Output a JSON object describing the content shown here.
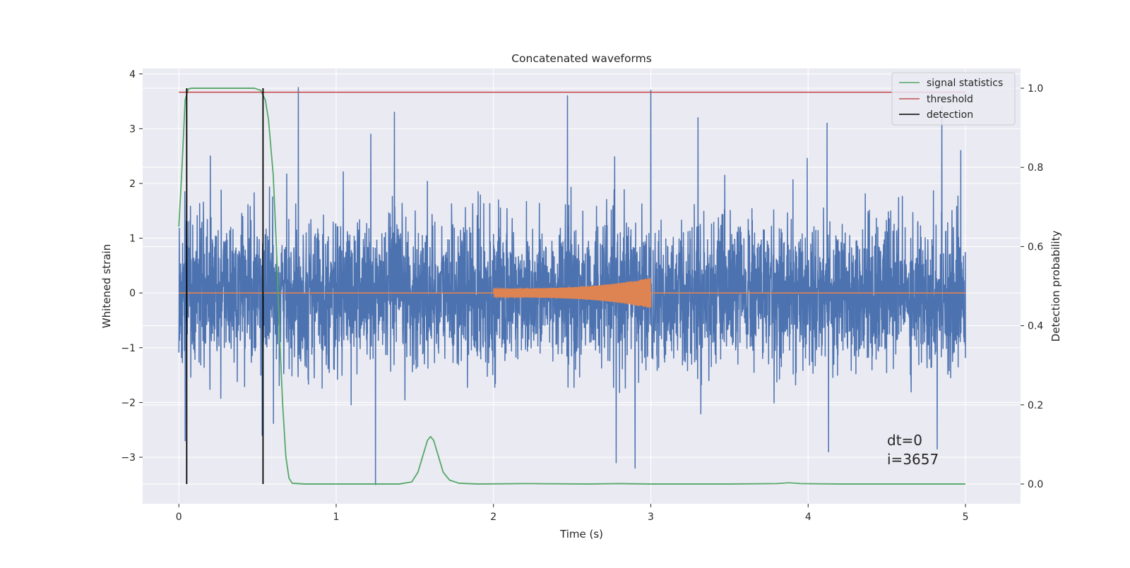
{
  "chart_data": {
    "type": "line",
    "title": "Concatenated waveforms",
    "xlabel": "Time (s)",
    "ylabel_left": "Whitened strain",
    "ylabel_right": "Detection probability",
    "xlim": [
      -0.23,
      5.35
    ],
    "ylim_left": [
      -3.85,
      4.1
    ],
    "ylim_right": [
      -0.05,
      1.05
    ],
    "xticks": [
      0,
      1,
      2,
      3,
      4,
      5
    ],
    "xtick_labels": [
      "0",
      "1",
      "2",
      "3",
      "4",
      "5"
    ],
    "yticks_left": [
      -3,
      -2,
      -1,
      0,
      1,
      2,
      3,
      4
    ],
    "ytick_labels_left": [
      "−3",
      "−2",
      "−1",
      "0",
      "1",
      "2",
      "3",
      "4"
    ],
    "yticks_right": [
      0.0,
      0.2,
      0.4,
      0.6,
      0.8,
      1.0
    ],
    "ytick_labels_right": [
      "0.0",
      "0.2",
      "0.4",
      "0.6",
      "0.8",
      "1.0"
    ],
    "grid": true,
    "legend_placement": "top-right",
    "legend": [
      "signal statistics",
      "threshold",
      "detection"
    ],
    "colors": {
      "background": "#eaeaf2",
      "grid": "#ffffff",
      "strain": "#4c72b0",
      "injected_signal": "#dd8452",
      "signal_statistics": "#55a868",
      "threshold": "#c44e52",
      "detection": "#000000"
    },
    "series": [
      {
        "name": "signal statistics",
        "axis": "right",
        "x": [
          0.0,
          0.02,
          0.04,
          0.06,
          0.08,
          0.1,
          0.2,
          0.3,
          0.4,
          0.48,
          0.52,
          0.55,
          0.57,
          0.6,
          0.62,
          0.64,
          0.66,
          0.68,
          0.7,
          0.72,
          0.8,
          1.0,
          1.2,
          1.4,
          1.48,
          1.52,
          1.55,
          1.58,
          1.6,
          1.62,
          1.65,
          1.68,
          1.72,
          1.78,
          1.9,
          2.2,
          2.6,
          2.8,
          3.0,
          3.5,
          3.8,
          3.88,
          3.95,
          4.2,
          4.6,
          5.0
        ],
        "y": [
          0.65,
          0.8,
          0.97,
          0.998,
          1.0,
          1.0,
          1.0,
          1.0,
          1.0,
          1.0,
          0.995,
          0.97,
          0.92,
          0.78,
          0.6,
          0.38,
          0.2,
          0.07,
          0.015,
          0.002,
          0.0,
          0.0,
          0.0,
          0.0,
          0.005,
          0.03,
          0.07,
          0.11,
          0.12,
          0.11,
          0.07,
          0.03,
          0.01,
          0.002,
          0.0,
          0.001,
          0.0,
          0.001,
          0.0,
          0.0,
          0.001,
          0.003,
          0.001,
          0.0,
          0.0,
          0.0
        ]
      },
      {
        "name": "threshold",
        "axis": "right",
        "x": [
          0.0,
          5.0
        ],
        "y": [
          0.99,
          0.99
        ]
      },
      {
        "name": "detection",
        "axis": "right",
        "segments": [
          {
            "x": 0.05,
            "y": [
              0.0,
              1.0
            ]
          },
          {
            "x": 0.535,
            "y": [
              0.0,
              1.0
            ]
          }
        ]
      },
      {
        "axis": "left",
        "x_range": [
          0.0,
          5.0
        ],
        "envelope_std": 0.65,
        "peaks_positive": [
          [
            0.06,
            1.3
          ],
          [
            0.2,
            2.5
          ],
          [
            0.76,
            3.75
          ],
          [
            1.22,
            2.9
          ],
          [
            1.37,
            3.3
          ],
          [
            2.47,
            3.6
          ],
          [
            3.0,
            3.7
          ],
          [
            3.3,
            3.2
          ],
          [
            4.12,
            3.1
          ],
          [
            4.85,
            3.4
          ],
          [
            4.97,
            2.6
          ]
        ],
        "peaks_negative": [
          [
            0.04,
            -2.7
          ],
          [
            0.53,
            -2.6
          ],
          [
            1.25,
            -3.5
          ],
          [
            2.78,
            -3.1
          ],
          [
            2.9,
            -3.2
          ],
          [
            4.13,
            -2.9
          ],
          [
            4.82,
            -2.85
          ]
        ]
      },
      {
        "axis": "left",
        "x_range": [
          2.0,
          3.0
        ],
        "amplitude_range": [
          0.08,
          0.28
        ]
      }
    ],
    "annotations": [
      "dt=0",
      "i=3657"
    ]
  }
}
